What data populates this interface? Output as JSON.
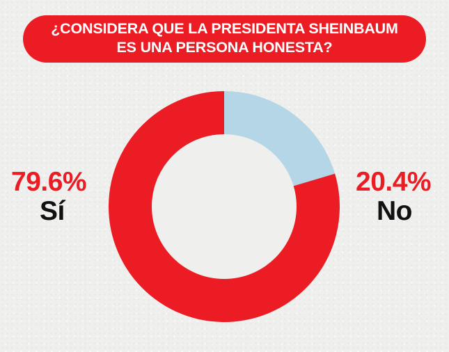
{
  "title": "¿CONSIDERA QUE LA PRESIDENTA SHEINBAUM ES UNA PERSONA HONESTA?",
  "colors": {
    "accent": "#ec1c24",
    "light": "#b5d6e6",
    "text": "#111111"
  },
  "chart_data": {
    "type": "pie",
    "title": "¿CONSIDERA QUE LA PRESIDENTA SHEINBAUM ES UNA PERSONA HONESTA?",
    "categories": [
      "Sí",
      "No"
    ],
    "values": [
      79.6,
      20.4
    ],
    "labels": [
      "79.6%",
      "20.4%"
    ],
    "colors": [
      "#ec1c24",
      "#b5d6e6"
    ],
    "donut": true
  }
}
